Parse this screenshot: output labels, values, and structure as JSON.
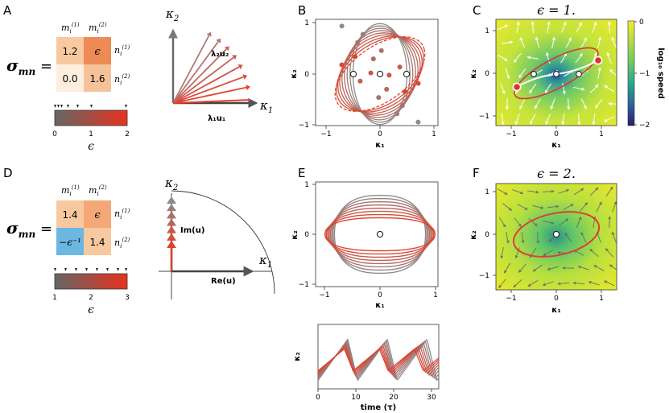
{
  "panels": {
    "A": {
      "letter": "A",
      "sigma_label": "σ",
      "sigma_sub": "mn",
      "equals": "=",
      "col_headers": [
        "m",
        "m"
      ],
      "col_sup": [
        "(1)",
        "(2)"
      ],
      "col_sub": "i",
      "row_labels": [
        "n",
        "n"
      ],
      "row_sup": [
        "(1)",
        "(2)"
      ],
      "row_sub": "i",
      "cells": [
        "1.2",
        "ϵ",
        "0.0",
        "1.6"
      ],
      "cell_colors": [
        "#f8c9a0",
        "#ee8a55",
        "#fdeedd",
        "#f6c29a"
      ],
      "colorbar_ticks": [
        "0",
        "1",
        "2"
      ],
      "colorbar_label": "ϵ",
      "axis_y_label": "κ",
      "axis_y_sub": "2",
      "axis_x_label": "κ",
      "axis_x_sub": "1",
      "vector1_label": "λ₁u₁",
      "vector2_label": "λ₂u₂"
    },
    "B": {
      "letter": "B",
      "xlabel": "κ₁",
      "ylabel": "κ₂",
      "xticks": [
        "−1",
        "0",
        "1"
      ],
      "yticks": [
        "−1",
        "0",
        "1"
      ]
    },
    "C": {
      "letter": "C",
      "title": "ϵ = 1.",
      "xlabel": "κ₁",
      "ylabel": "κ₂",
      "xticks": [
        "−1",
        "0",
        "1"
      ],
      "yticks": [
        "−1",
        "0",
        "1"
      ],
      "colorbar_ticks": [
        "0",
        "−1",
        "−2"
      ],
      "colorbar_label": "log₁₀ speed"
    },
    "D": {
      "letter": "D",
      "sigma_label": "σ",
      "sigma_sub": "mn",
      "equals": "=",
      "col_headers": [
        "m",
        "m"
      ],
      "col_sup": [
        "(1)",
        "(2)"
      ],
      "col_sub": "i",
      "row_labels": [
        "n",
        "n"
      ],
      "row_sup": [
        "(1)",
        "(2)"
      ],
      "row_sub": "i",
      "cells": [
        "1.4",
        "ϵ",
        "−ϵ⁻¹",
        "1.4"
      ],
      "cell_colors": [
        "#f8c9a0",
        "#f4a877",
        "#6cb7e2",
        "#f8c9a0"
      ],
      "colorbar_ticks": [
        "1",
        "2",
        "3"
      ],
      "colorbar_label": "ϵ",
      "axis_y_label": "κ",
      "axis_y_sub": "2",
      "axis_x_label": "κ",
      "axis_x_sub": "1",
      "im_label": "Im(u)",
      "re_label": "Re(u)"
    },
    "E": {
      "letter": "E",
      "xlabel": "κ₁",
      "ylabel": "κ₂",
      "xticks": [
        "−1",
        "0",
        "1"
      ],
      "yticks": [
        "−1",
        "0",
        "1"
      ],
      "bottom_ylabel": "κ₂",
      "bottom_xlabel": "time (τ)",
      "bottom_xticks": [
        "0",
        "10",
        "20",
        "30"
      ]
    },
    "F": {
      "letter": "F",
      "title": "ϵ = 2.",
      "xlabel": "κ₁",
      "ylabel": "κ₂",
      "xticks": [
        "−1",
        "0",
        "1"
      ],
      "yticks": [
        "−1",
        "0",
        "1"
      ]
    }
  },
  "colors": {
    "grey": "#8a8a8a",
    "red": "#e0422e",
    "dark_red": "#b8433a",
    "field_yellow": "#e8ea2c",
    "field_green": "#5cc46a",
    "field_blue": "#2a3f9c"
  }
}
